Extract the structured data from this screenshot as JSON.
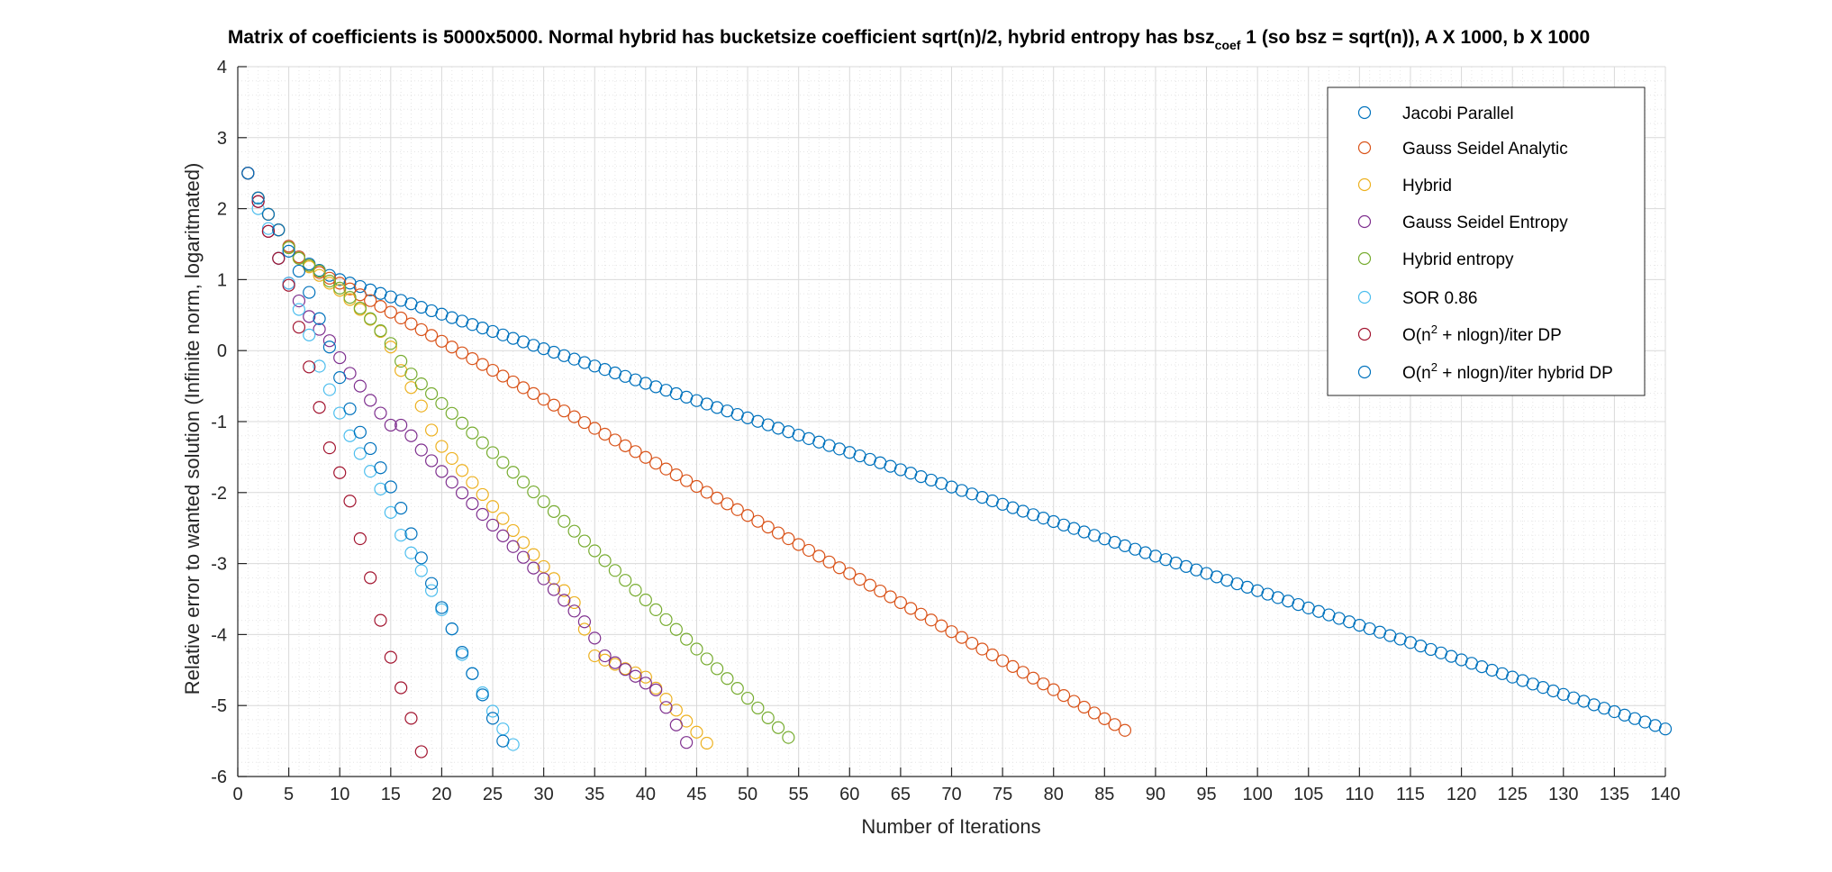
{
  "chart_data": {
    "type": "scatter",
    "title": {
      "before_sub": "Matrix of coefficients is 5000x5000. Normal hybrid has bucketsize coefficient sqrt(n)/2, hybrid entropy has bsz",
      "sub": "coef",
      "after_sub": " 1 (so bsz = sqrt(n)), A X 1000, b X 1000"
    },
    "xlabel": "Number of Iterations",
    "ylabel": "Relative error to wanted solution (Infinite norm, logaritmated)",
    "xlim": [
      0,
      140
    ],
    "ylim": [
      -6,
      4
    ],
    "x_ticks": [
      0,
      5,
      10,
      15,
      20,
      25,
      30,
      35,
      40,
      45,
      50,
      55,
      60,
      65,
      70,
      75,
      80,
      85,
      90,
      95,
      100,
      105,
      110,
      115,
      120,
      125,
      130,
      135,
      140
    ],
    "y_ticks": [
      -6,
      -5,
      -4,
      -3,
      -2,
      -1,
      0,
      1,
      2,
      3,
      4
    ],
    "grid": true,
    "minor_grid": true,
    "legend_position": "top-right",
    "marker": "open-circle",
    "series": [
      {
        "name": "Jacobi Parallel",
        "color": "#0072BD",
        "line": [
          [
            1,
            2.5
          ],
          [
            2,
            2.15
          ],
          [
            3,
            1.92
          ],
          [
            4,
            1.7
          ],
          [
            5,
            1.47
          ],
          [
            6,
            1.32
          ],
          [
            7,
            1.22
          ],
          [
            8,
            1.13
          ],
          [
            9,
            1.06
          ],
          [
            10,
            1.0
          ],
          [
            140,
            -5.33
          ]
        ]
      },
      {
        "name": "Gauss Seidel Analytic",
        "color": "#D95319",
        "line": [
          [
            1,
            2.5
          ],
          [
            2,
            2.15
          ],
          [
            3,
            1.92
          ],
          [
            4,
            1.7
          ],
          [
            5,
            1.47
          ],
          [
            6,
            1.32
          ],
          [
            7,
            1.2
          ],
          [
            8,
            1.1
          ],
          [
            9,
            1.02
          ],
          [
            10,
            0.95
          ],
          [
            87,
            -5.35
          ]
        ]
      },
      {
        "name": "Hybrid",
        "color": "#EDB120",
        "line": [
          [
            1,
            2.5
          ],
          [
            2,
            2.15
          ],
          [
            3,
            1.92
          ],
          [
            4,
            1.7
          ],
          [
            5,
            1.45
          ],
          [
            6,
            1.3
          ],
          [
            7,
            1.18
          ],
          [
            8,
            1.06
          ],
          [
            9,
            0.95
          ],
          [
            10,
            0.85
          ],
          [
            11,
            0.72
          ],
          [
            12,
            0.58
          ],
          [
            13,
            0.44
          ],
          [
            14,
            0.27
          ],
          [
            15,
            0.05
          ],
          [
            16,
            -0.28
          ],
          [
            17,
            -0.52
          ],
          [
            18,
            -0.78
          ],
          [
            19,
            -1.12
          ],
          [
            20,
            -1.35
          ],
          [
            33,
            -3.55
          ],
          [
            35,
            -4.3
          ],
          [
            40,
            -4.6
          ],
          [
            46,
            -5.53
          ]
        ]
      },
      {
        "name": "Gauss Seidel Entropy",
        "color": "#7E2F8E",
        "line": [
          [
            1,
            2.5
          ],
          [
            2,
            2.1
          ],
          [
            3,
            1.68
          ],
          [
            4,
            1.3
          ],
          [
            5,
            0.95
          ],
          [
            6,
            0.7
          ],
          [
            7,
            0.48
          ],
          [
            8,
            0.3
          ],
          [
            9,
            0.14
          ],
          [
            10,
            -0.1
          ],
          [
            11,
            -0.32
          ],
          [
            12,
            -0.5
          ],
          [
            13,
            -0.7
          ],
          [
            14,
            -0.88
          ],
          [
            15,
            -1.05
          ],
          [
            16,
            -1.05
          ],
          [
            17,
            -1.2
          ],
          [
            18,
            -1.4
          ],
          [
            34,
            -3.82
          ],
          [
            35,
            -4.05
          ],
          [
            36,
            -4.3
          ],
          [
            41,
            -4.78
          ],
          [
            44,
            -5.52
          ]
        ]
      },
      {
        "name": "Hybrid entropy",
        "color": "#77AC30",
        "line": [
          [
            5,
            1.45
          ],
          [
            6,
            1.3
          ],
          [
            7,
            1.2
          ],
          [
            8,
            1.12
          ],
          [
            9,
            0.98
          ],
          [
            10,
            0.88
          ],
          [
            11,
            0.75
          ],
          [
            12,
            0.6
          ],
          [
            13,
            0.45
          ],
          [
            14,
            0.28
          ],
          [
            15,
            0.1
          ],
          [
            16,
            -0.15
          ],
          [
            17,
            -0.33
          ],
          [
            54,
            -5.45
          ]
        ]
      },
      {
        "name": "SOR 0.86",
        "color": "#4DBEEE",
        "line": [
          [
            1,
            2.5
          ],
          [
            2,
            2.0
          ],
          [
            3,
            1.72
          ],
          [
            4,
            1.3
          ],
          [
            5,
            0.95
          ],
          [
            6,
            0.58
          ],
          [
            7,
            0.22
          ],
          [
            8,
            -0.22
          ],
          [
            9,
            -0.55
          ],
          [
            10,
            -0.88
          ],
          [
            11,
            -1.2
          ],
          [
            12,
            -1.45
          ],
          [
            13,
            -1.7
          ],
          [
            14,
            -1.95
          ],
          [
            15,
            -2.28
          ],
          [
            16,
            -2.6
          ],
          [
            17,
            -2.85
          ],
          [
            18,
            -3.1
          ],
          [
            19,
            -3.38
          ],
          [
            20,
            -3.65
          ],
          [
            21,
            -3.92
          ],
          [
            22,
            -4.28
          ],
          [
            23,
            -4.55
          ],
          [
            24,
            -4.82
          ],
          [
            25,
            -5.08
          ],
          [
            26,
            -5.33
          ],
          [
            27,
            -5.55
          ]
        ]
      },
      {
        "name": "O(n² + nlogn)/iter DP",
        "name_parts": [
          "O(n",
          "2",
          " + nlogn)/iter DP"
        ],
        "color": "#A2142F",
        "line": [
          [
            1,
            2.5
          ],
          [
            2,
            2.1
          ],
          [
            3,
            1.68
          ],
          [
            4,
            1.3
          ],
          [
            5,
            0.92
          ],
          [
            6,
            0.33
          ],
          [
            7,
            -0.23
          ],
          [
            8,
            -0.8
          ],
          [
            9,
            -1.37
          ],
          [
            10,
            -1.72
          ],
          [
            11,
            -2.12
          ],
          [
            12,
            -2.65
          ],
          [
            13,
            -3.2
          ],
          [
            14,
            -3.8
          ],
          [
            15,
            -4.32
          ],
          [
            16,
            -4.75
          ],
          [
            17,
            -5.18
          ],
          [
            18,
            -5.65
          ]
        ]
      },
      {
        "name": "O(n² + nlogn)/iter hybrid DP",
        "name_parts": [
          "O(n",
          "2",
          " + nlogn)/iter hybrid DP"
        ],
        "color": "#0072BD",
        "line": [
          [
            1,
            2.5
          ],
          [
            2,
            2.15
          ],
          [
            3,
            1.92
          ],
          [
            4,
            1.7
          ],
          [
            5,
            1.4
          ],
          [
            6,
            1.12
          ],
          [
            7,
            0.82
          ],
          [
            8,
            0.45
          ],
          [
            9,
            0.05
          ],
          [
            10,
            -0.38
          ],
          [
            11,
            -0.82
          ],
          [
            12,
            -1.15
          ],
          [
            13,
            -1.38
          ],
          [
            14,
            -1.65
          ],
          [
            15,
            -1.92
          ],
          [
            16,
            -2.22
          ],
          [
            17,
            -2.58
          ],
          [
            18,
            -2.92
          ],
          [
            19,
            -3.28
          ],
          [
            20,
            -3.62
          ],
          [
            21,
            -3.92
          ],
          [
            22,
            -4.25
          ],
          [
            23,
            -4.55
          ],
          [
            24,
            -4.85
          ],
          [
            25,
            -5.18
          ],
          [
            26,
            -5.5
          ]
        ]
      }
    ]
  }
}
